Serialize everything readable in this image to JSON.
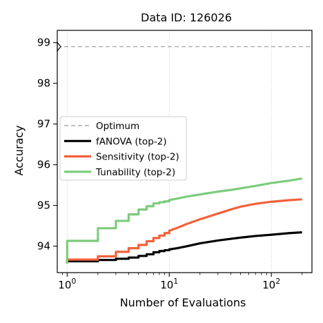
{
  "chart_data": {
    "type": "line",
    "title": "Data ID: 126026",
    "xlabel": "Number of Evaluations",
    "ylabel": "Accuracy",
    "x_scale": "log",
    "xlim": [
      0.8,
      250
    ],
    "ylim": [
      93.35,
      99.3
    ],
    "x_ticks": [
      {
        "value": 1,
        "base": "10",
        "exp": "0"
      },
      {
        "value": 10,
        "base": "10",
        "exp": "1"
      },
      {
        "value": 100,
        "base": "10",
        "exp": "2"
      }
    ],
    "y_ticks": [
      94,
      95,
      96,
      97,
      98,
      99
    ],
    "grid": "vertical-dotted",
    "legend": {
      "position": "center-left"
    },
    "optimum": {
      "label": "Optimum",
      "value": 98.9,
      "color": "#aaaaaa"
    },
    "series": [
      {
        "name": "fANOVA (top-2)",
        "color": "#000000",
        "points": [
          [
            1,
            93.57
          ],
          [
            1,
            93.63
          ],
          [
            2,
            93.63
          ],
          [
            2,
            93.66
          ],
          [
            3,
            93.66
          ],
          [
            3,
            93.69
          ],
          [
            4,
            93.69
          ],
          [
            4,
            93.72
          ],
          [
            5,
            93.72
          ],
          [
            5,
            93.76
          ],
          [
            6,
            93.76
          ],
          [
            6,
            93.8
          ],
          [
            7,
            93.8
          ],
          [
            7,
            93.85
          ],
          [
            8,
            93.85
          ],
          [
            8,
            93.88
          ],
          [
            9,
            93.88
          ],
          [
            9,
            93.9
          ],
          [
            10,
            93.9
          ],
          [
            10,
            93.92
          ],
          [
            12,
            93.95
          ],
          [
            15,
            94.0
          ],
          [
            20,
            94.07
          ],
          [
            30,
            94.14
          ],
          [
            40,
            94.18
          ],
          [
            50,
            94.21
          ],
          [
            70,
            94.25
          ],
          [
            100,
            94.28
          ],
          [
            150,
            94.32
          ],
          [
            200,
            94.34
          ]
        ]
      },
      {
        "name": "Sensitivity (top-2)",
        "color": "#f4603a",
        "points": [
          [
            1,
            93.57
          ],
          [
            1,
            93.67
          ],
          [
            2,
            93.67
          ],
          [
            2,
            93.75
          ],
          [
            3,
            93.75
          ],
          [
            3,
            93.86
          ],
          [
            4,
            93.86
          ],
          [
            4,
            93.95
          ],
          [
            5,
            93.95
          ],
          [
            5,
            94.03
          ],
          [
            6,
            94.03
          ],
          [
            6,
            94.12
          ],
          [
            7,
            94.12
          ],
          [
            7,
            94.2
          ],
          [
            8,
            94.2
          ],
          [
            8,
            94.26
          ],
          [
            9,
            94.26
          ],
          [
            9,
            94.32
          ],
          [
            10,
            94.32
          ],
          [
            10,
            94.38
          ],
          [
            12,
            94.45
          ],
          [
            15,
            94.55
          ],
          [
            20,
            94.66
          ],
          [
            30,
            94.8
          ],
          [
            40,
            94.9
          ],
          [
            50,
            94.97
          ],
          [
            70,
            95.04
          ],
          [
            100,
            95.09
          ],
          [
            150,
            95.13
          ],
          [
            200,
            95.15
          ]
        ]
      },
      {
        "name": "Tunability (top-2)",
        "color": "#7ccc7c",
        "points": [
          [
            1,
            93.57
          ],
          [
            1,
            94.13
          ],
          [
            2,
            94.13
          ],
          [
            2,
            94.44
          ],
          [
            3,
            94.44
          ],
          [
            3,
            94.62
          ],
          [
            4,
            94.62
          ],
          [
            4,
            94.78
          ],
          [
            5,
            94.78
          ],
          [
            5,
            94.9
          ],
          [
            6,
            94.9
          ],
          [
            6,
            94.98
          ],
          [
            7,
            94.98
          ],
          [
            7,
            95.05
          ],
          [
            8,
            95.05
          ],
          [
            8,
            95.08
          ],
          [
            9,
            95.08
          ],
          [
            9,
            95.1
          ],
          [
            10,
            95.1
          ],
          [
            10,
            95.13
          ],
          [
            12,
            95.17
          ],
          [
            15,
            95.22
          ],
          [
            20,
            95.27
          ],
          [
            30,
            95.34
          ],
          [
            40,
            95.38
          ],
          [
            50,
            95.42
          ],
          [
            70,
            95.48
          ],
          [
            100,
            95.55
          ],
          [
            150,
            95.61
          ],
          [
            200,
            95.66
          ]
        ]
      }
    ]
  }
}
